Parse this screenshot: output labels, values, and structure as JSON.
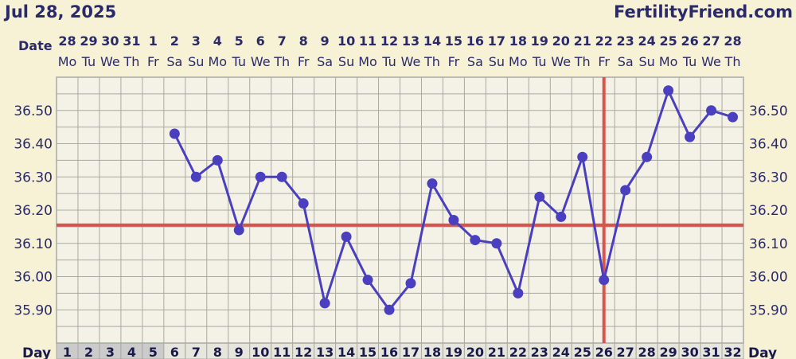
{
  "header": {
    "date": "Jul 28, 2025",
    "brand": "FertilityFriend.com"
  },
  "chart_data": {
    "type": "line",
    "row_labels": {
      "date": "Date",
      "day": "Day"
    },
    "dates": [
      "28",
      "29",
      "30",
      "31",
      "1",
      "2",
      "3",
      "4",
      "5",
      "6",
      "7",
      "8",
      "9",
      "10",
      "11",
      "12",
      "13",
      "14",
      "15",
      "16",
      "17",
      "18",
      "19",
      "20",
      "21",
      "22",
      "23",
      "24",
      "25",
      "26",
      "27",
      "28"
    ],
    "weekdays": [
      "Mo",
      "Tu",
      "We",
      "Th",
      "Fr",
      "Sa",
      "Su",
      "Mo",
      "Tu",
      "We",
      "Th",
      "Fr",
      "Sa",
      "Su",
      "Mo",
      "Tu",
      "We",
      "Th",
      "Fr",
      "Sa",
      "Su",
      "Mo",
      "Tu",
      "We",
      "Th",
      "Fr",
      "Sa",
      "Su",
      "Mo",
      "Tu",
      "We",
      "Th"
    ],
    "cycle_days": [
      1,
      2,
      3,
      4,
      5,
      6,
      7,
      8,
      9,
      10,
      11,
      12,
      13,
      14,
      15,
      16,
      17,
      18,
      19,
      20,
      21,
      22,
      23,
      24,
      25,
      26,
      27,
      28,
      29,
      30,
      31,
      32
    ],
    "series": [
      {
        "values": [
          null,
          null,
          null,
          null,
          null,
          36.43,
          36.3,
          36.35,
          36.14,
          36.3,
          36.3,
          36.22,
          35.92,
          36.12,
          35.99,
          35.9,
          35.98,
          36.28,
          36.17,
          36.11,
          36.1,
          35.95,
          36.24,
          36.18,
          36.36,
          35.99,
          36.26,
          36.36,
          36.56,
          36.42,
          36.5,
          36.48
        ]
      }
    ],
    "y_ticks": [
      "35.90",
      "36.00",
      "36.10",
      "36.20",
      "36.30",
      "36.40",
      "36.50"
    ],
    "ylim": [
      35.8,
      36.6
    ],
    "coverline": 36.155,
    "ovulation_day": 26,
    "shaded_days": [
      1,
      2,
      3,
      4,
      5
    ],
    "colors": {
      "line": "#4a3fbf",
      "coverline": "#d9534f",
      "ovulation": "#d9534f",
      "grid": "#aaa9a2",
      "plot_bg": "#f4f2e6",
      "shaded_cell": "#cbcbcb",
      "day_cell": "#e7e6dd"
    }
  }
}
